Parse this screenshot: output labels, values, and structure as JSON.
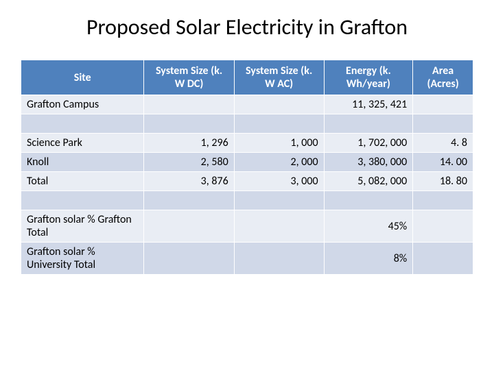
{
  "title": "Proposed Solar Electricity in Grafton",
  "table": {
    "header_bg": "#4f81bd",
    "header_fg": "#ffffff",
    "row_odd_bg": "#e9edf4",
    "row_even_bg": "#d0d8e8",
    "columns": [
      "Site",
      "System Size (k. W DC)",
      "System Size (k. W AC)",
      "Energy (k. Wh/year)",
      "Area (Acres)"
    ],
    "rows": [
      {
        "label": "Grafton Campus",
        "values": [
          "",
          "",
          "11, 325, 421",
          ""
        ]
      },
      {
        "label": "",
        "values": [
          "",
          "",
          "",
          ""
        ]
      },
      {
        "label": "Science Park",
        "values": [
          "1, 296",
          "1, 000",
          "1, 702, 000",
          "4. 8"
        ]
      },
      {
        "label": "Knoll",
        "values": [
          "2, 580",
          "2, 000",
          "3, 380, 000",
          "14. 00"
        ]
      },
      {
        "label": "Total",
        "values": [
          "3, 876",
          "3, 000",
          "5, 082, 000",
          "18. 80"
        ]
      },
      {
        "label": "",
        "values": [
          "",
          "",
          "",
          ""
        ]
      },
      {
        "label": "Grafton solar % Grafton Total",
        "values": [
          "",
          "",
          "45%",
          ""
        ]
      },
      {
        "label": "Grafton solar % University Total",
        "values": [
          "",
          "",
          "8%",
          ""
        ]
      }
    ]
  }
}
